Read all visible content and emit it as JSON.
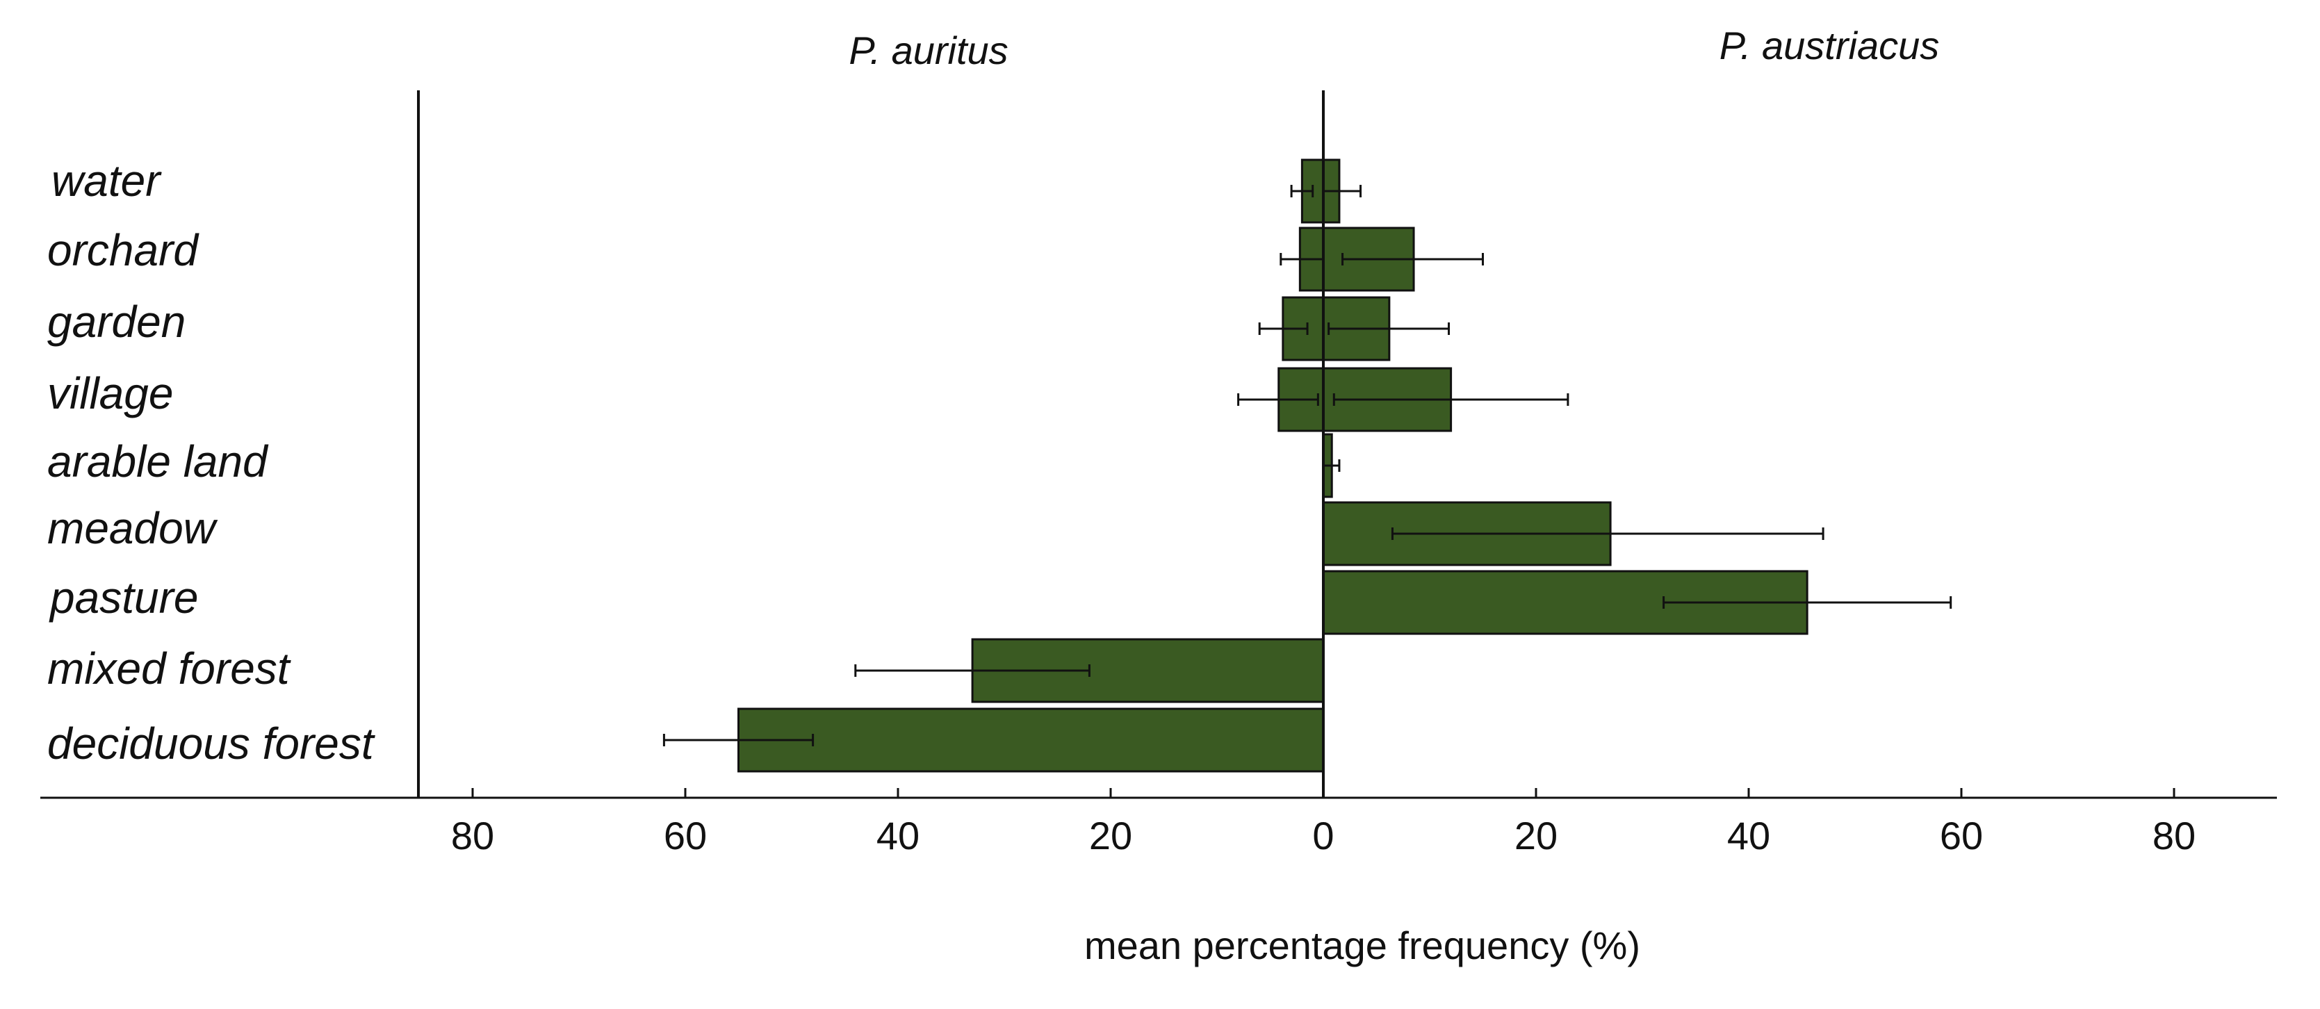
{
  "chart_data": {
    "type": "bar",
    "orientation": "horizontal",
    "xlabel": "mean percentage frequency (%)",
    "x_tick_labels": [
      "80",
      "60",
      "40",
      "20",
      "0",
      "20",
      "40",
      "60",
      "80"
    ],
    "x_tick_values": [
      -80,
      -60,
      -40,
      -20,
      0,
      20,
      40,
      60,
      80
    ],
    "xlim": [
      -80,
      80
    ],
    "categories": [
      "water",
      "orchard",
      "garden",
      "village",
      "arable land",
      "meadow",
      "pasture",
      "mixed forest",
      "deciduous forest"
    ],
    "bar_color": "#3a5a22",
    "grid": false,
    "series": [
      {
        "name": "P. auritus",
        "side": "left",
        "values": [
          2,
          2.2,
          3.8,
          4.2,
          0,
          0,
          0,
          33,
          55
        ],
        "error_low": [
          3,
          4,
          6,
          8,
          0,
          0,
          0,
          44,
          62
        ],
        "error_high": [
          1,
          0,
          1.5,
          0.5,
          0,
          0,
          0,
          22,
          48
        ]
      },
      {
        "name": "P. austriacus",
        "side": "right",
        "values": [
          1.5,
          8.5,
          6.2,
          12,
          0.8,
          27,
          45.5,
          0,
          0
        ],
        "error_low": [
          0,
          1.8,
          0.5,
          1,
          0,
          6.5,
          32,
          0,
          0
        ],
        "error_high": [
          3.5,
          15,
          11.8,
          23,
          1.5,
          47,
          59,
          0,
          0
        ]
      }
    ]
  }
}
